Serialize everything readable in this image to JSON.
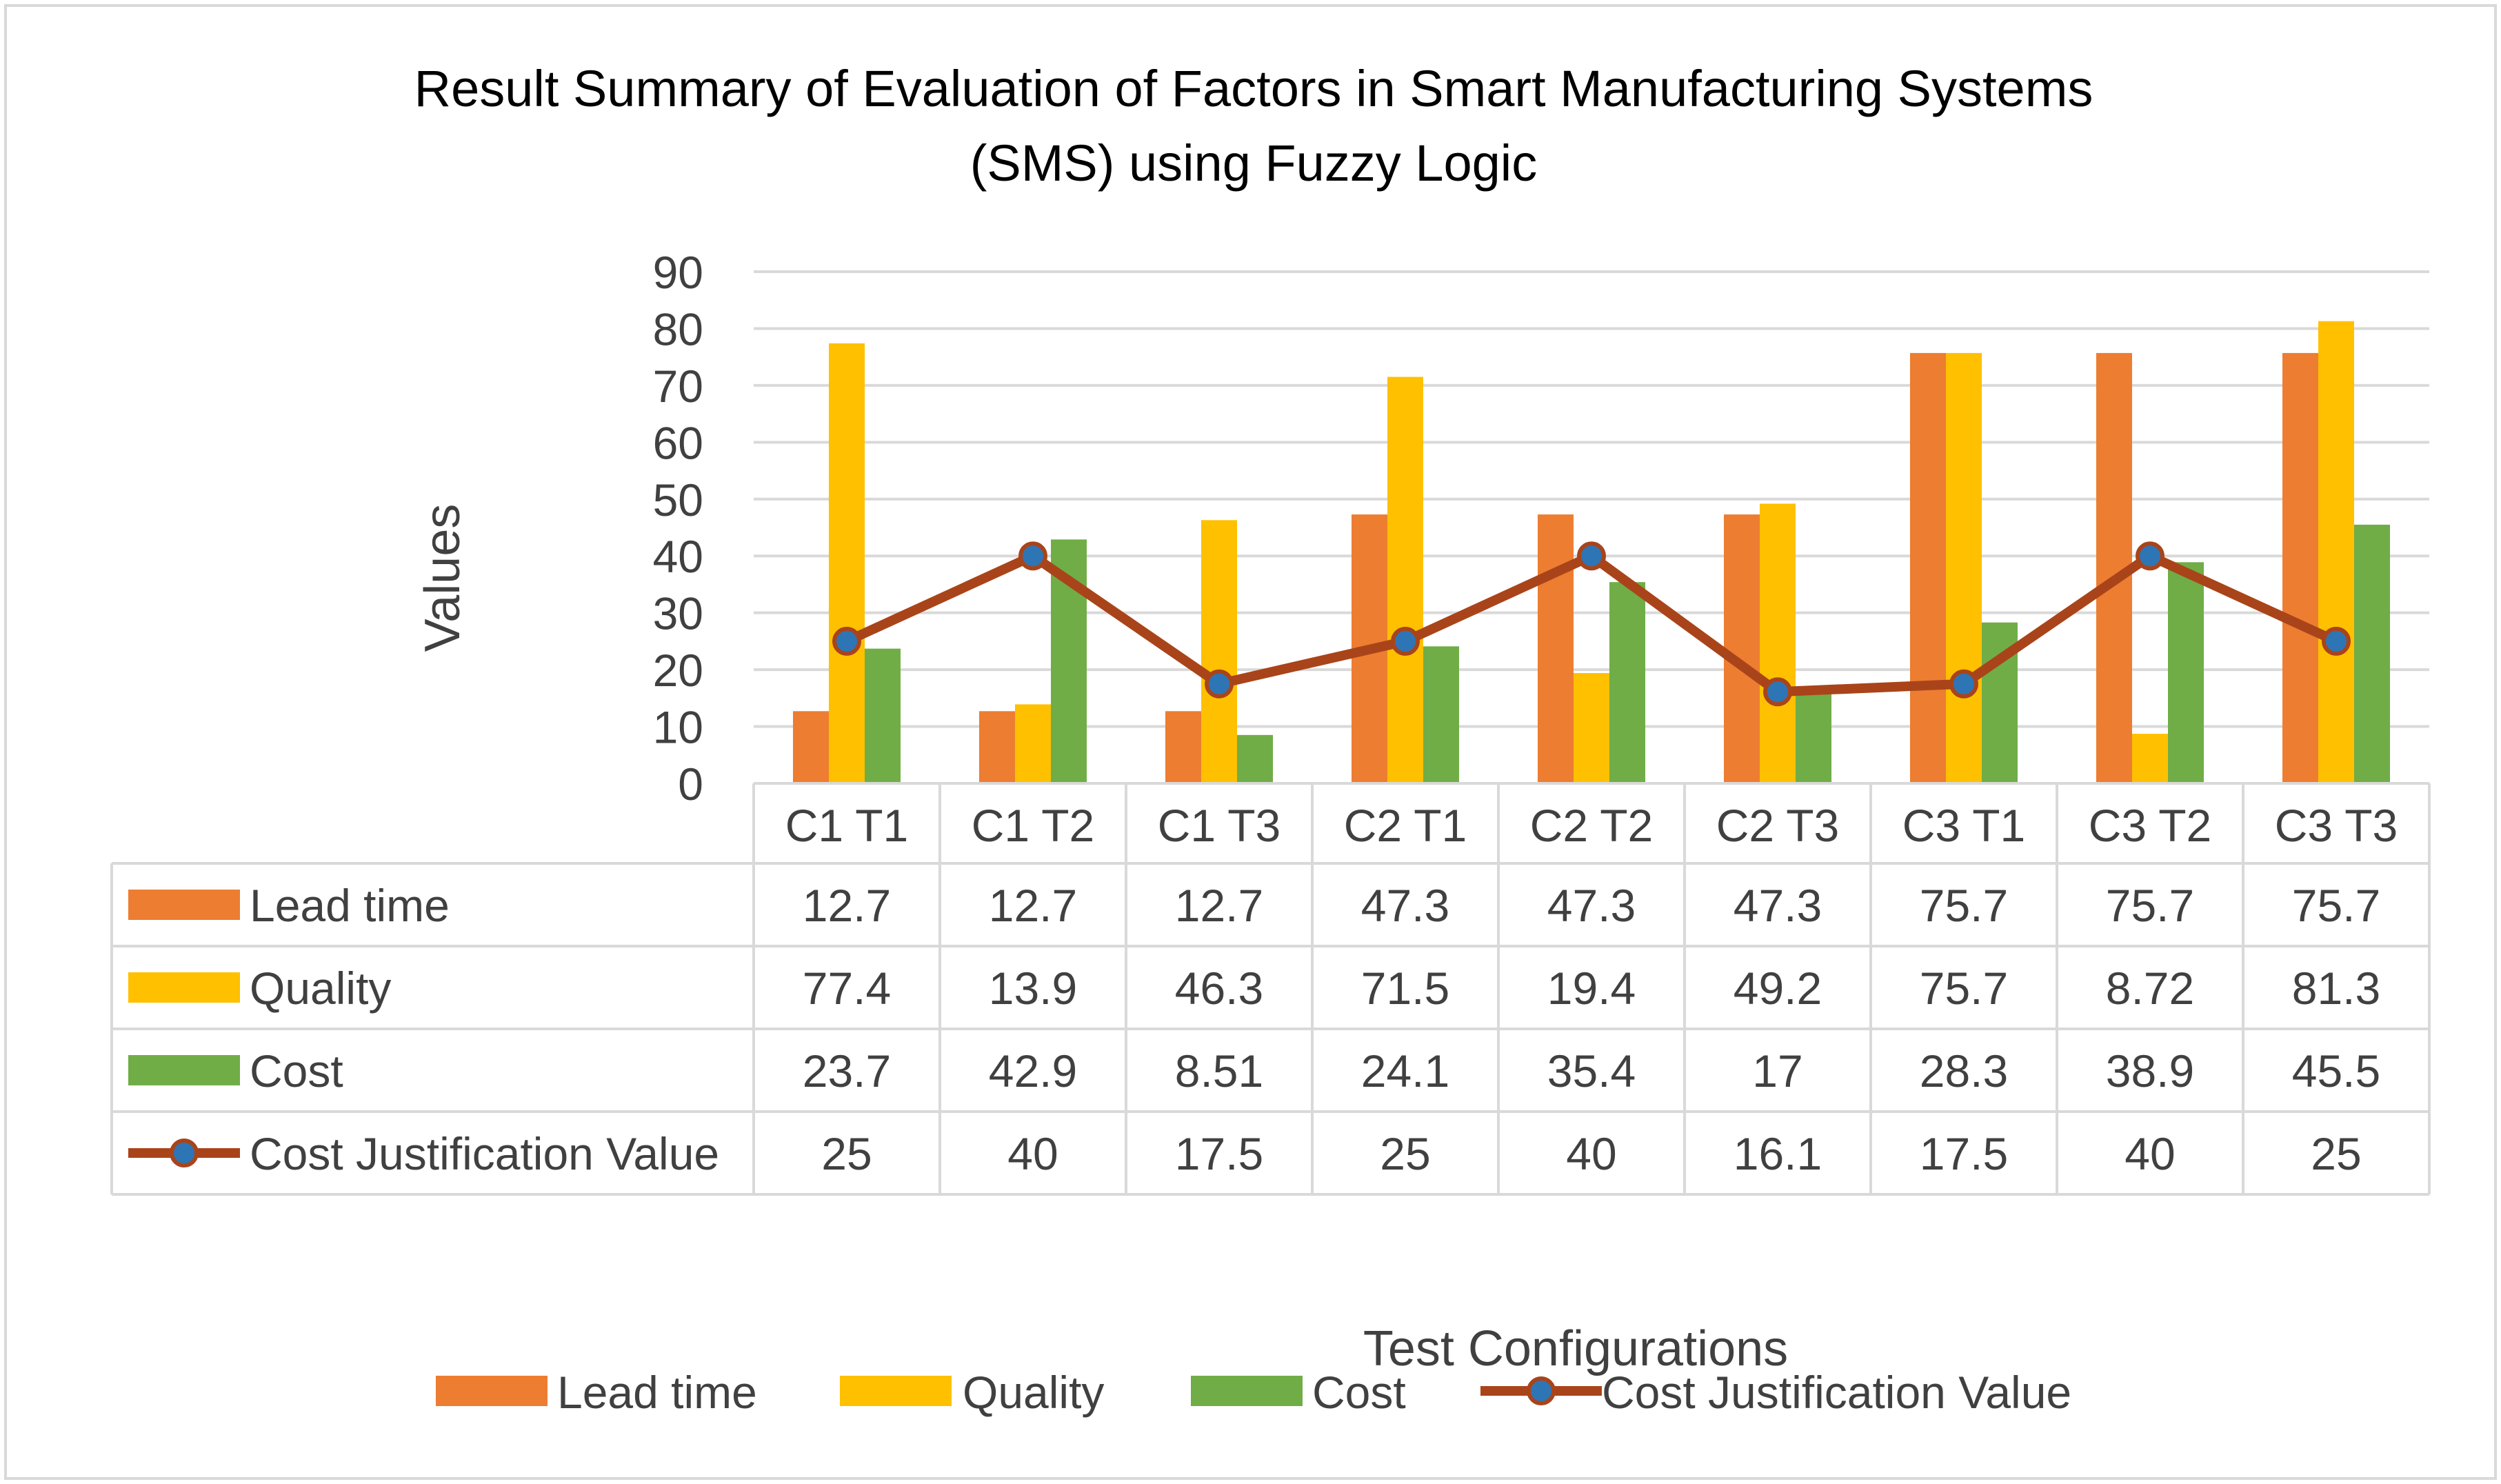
{
  "chart_data": {
    "type": "bar",
    "title_lines": [
      "Result Summary of Evaluation of Factors in Smart Manufacturing Systems",
      "(SMS) using Fuzzy Logic"
    ],
    "xlabel": "Test Configurations",
    "ylabel": "Values",
    "ylim": [
      0,
      90
    ],
    "yticks": [
      0,
      10,
      20,
      30,
      40,
      50,
      60,
      70,
      80,
      90
    ],
    "categories": [
      "C1 T1",
      "C1 T2",
      "C1 T3",
      "C2 T1",
      "C2 T2",
      "C2 T3",
      "C3 T1",
      "C3 T2",
      "C3 T3"
    ],
    "series": [
      {
        "name": "Lead time",
        "kind": "bar",
        "color": "#ED7D31",
        "values": [
          12.7,
          12.7,
          12.7,
          47.3,
          47.3,
          47.3,
          75.7,
          75.7,
          75.7
        ],
        "labels": [
          "12.7",
          "12.7",
          "12.7",
          "47.3",
          "47.3",
          "47.3",
          "75.7",
          "75.7",
          "75.7"
        ]
      },
      {
        "name": "Quality",
        "kind": "bar",
        "color": "#FFC000",
        "values": [
          77.4,
          13.9,
          46.3,
          71.5,
          19.4,
          49.2,
          75.7,
          8.72,
          81.3
        ],
        "labels": [
          "77.4",
          "13.9",
          "46.3",
          "71.5",
          "19.4",
          "49.2",
          "75.7",
          "8.72",
          "81.3"
        ]
      },
      {
        "name": "Cost",
        "kind": "bar",
        "color": "#70AD47",
        "values": [
          23.7,
          42.9,
          8.51,
          24.1,
          35.4,
          17,
          28.3,
          38.9,
          45.5
        ],
        "labels": [
          "23.7",
          "42.9",
          "8.51",
          "24.1",
          "35.4",
          "17",
          "28.3",
          "38.9",
          "45.5"
        ]
      },
      {
        "name": "Cost Justification Value",
        "kind": "line",
        "color": "#A9441A",
        "marker_color": "#2E75B6",
        "values": [
          25,
          40,
          17.5,
          25,
          40,
          16.1,
          17.5,
          40,
          25
        ],
        "labels": [
          "25",
          "40",
          "17.5",
          "25",
          "40",
          "16.1",
          "17.5",
          "40",
          "25"
        ]
      }
    ],
    "data_table": true,
    "grid": true,
    "legend": "bottom"
  }
}
